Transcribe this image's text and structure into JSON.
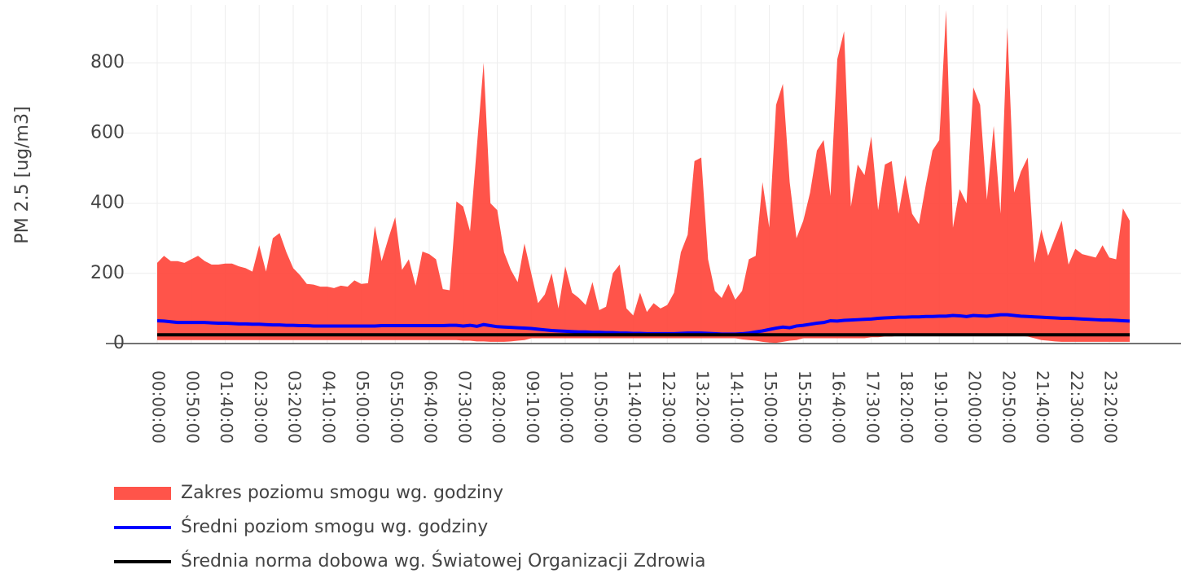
{
  "chart_data": {
    "type": "range-line",
    "ylabel": "PM 2.5 [ug/m3]",
    "x": [
      "00:00:00",
      "00:10:00",
      "00:20:00",
      "00:30:00",
      "00:40:00",
      "00:50:00",
      "01:00:00",
      "01:10:00",
      "01:20:00",
      "01:30:00",
      "01:40:00",
      "01:50:00",
      "02:00:00",
      "02:10:00",
      "02:20:00",
      "02:30:00",
      "02:40:00",
      "02:50:00",
      "03:00:00",
      "03:10:00",
      "03:20:00",
      "03:30:00",
      "03:40:00",
      "03:50:00",
      "04:00:00",
      "04:10:00",
      "04:20:00",
      "04:30:00",
      "04:40:00",
      "04:50:00",
      "05:00:00",
      "05:10:00",
      "05:20:00",
      "05:30:00",
      "05:40:00",
      "05:50:00",
      "06:00:00",
      "06:10:00",
      "06:20:00",
      "06:30:00",
      "06:40:00",
      "06:50:00",
      "07:00:00",
      "07:10:00",
      "07:20:00",
      "07:30:00",
      "07:40:00",
      "07:50:00",
      "08:00:00",
      "08:10:00",
      "08:20:00",
      "08:30:00",
      "08:40:00",
      "08:50:00",
      "09:00:00",
      "09:10:00",
      "09:20:00",
      "09:30:00",
      "09:40:00",
      "09:50:00",
      "10:00:00",
      "10:10:00",
      "10:20:00",
      "10:30:00",
      "10:40:00",
      "10:50:00",
      "11:00:00",
      "11:10:00",
      "11:20:00",
      "11:30:00",
      "11:40:00",
      "11:50:00",
      "12:00:00",
      "12:10:00",
      "12:20:00",
      "12:30:00",
      "12:40:00",
      "12:50:00",
      "13:00:00",
      "13:10:00",
      "13:20:00",
      "13:30:00",
      "13:40:00",
      "13:50:00",
      "14:00:00",
      "14:10:00",
      "14:20:00",
      "14:30:00",
      "14:40:00",
      "14:50:00",
      "15:00:00",
      "15:10:00",
      "15:20:00",
      "15:30:00",
      "15:40:00",
      "15:50:00",
      "16:00:00",
      "16:10:00",
      "16:20:00",
      "16:30:00",
      "16:40:00",
      "16:50:00",
      "17:00:00",
      "17:10:00",
      "17:20:00",
      "17:30:00",
      "17:40:00",
      "17:50:00",
      "18:00:00",
      "18:10:00",
      "18:20:00",
      "18:30:00",
      "18:40:00",
      "18:50:00",
      "19:00:00",
      "19:10:00",
      "19:20:00",
      "19:30:00",
      "19:40:00",
      "19:50:00",
      "20:00:00",
      "20:10:00",
      "20:20:00",
      "20:30:00",
      "20:40:00",
      "20:50:00",
      "21:00:00",
      "21:10:00",
      "21:20:00",
      "21:30:00",
      "21:40:00",
      "21:50:00",
      "22:00:00",
      "22:10:00",
      "22:20:00",
      "22:30:00",
      "22:40:00",
      "22:50:00",
      "23:00:00",
      "23:10:00",
      "23:20:00",
      "23:30:00",
      "23:40:00",
      "23:50:00"
    ],
    "xticks": [
      "00:00:00",
      "00:50:00",
      "01:40:00",
      "02:30:00",
      "03:20:00",
      "04:10:00",
      "05:00:00",
      "05:50:00",
      "06:40:00",
      "07:30:00",
      "08:20:00",
      "09:10:00",
      "10:00:00",
      "10:50:00",
      "11:40:00",
      "12:30:00",
      "13:20:00",
      "14:10:00",
      "15:00:00",
      "15:50:00",
      "16:40:00",
      "17:30:00",
      "18:20:00",
      "19:10:00",
      "20:00:00",
      "20:50:00",
      "21:40:00",
      "22:30:00",
      "23:20:00"
    ],
    "ylim": [
      0,
      965
    ],
    "yticks": [
      0,
      200,
      400,
      600,
      800
    ],
    "grid": true,
    "series": [
      {
        "name": "Zakres poziomu smogu wg. godziny",
        "color": "#ff4136",
        "type": "range",
        "upper": [
          230,
          250,
          235,
          235,
          230,
          240,
          250,
          235,
          225,
          225,
          228,
          228,
          220,
          215,
          205,
          280,
          205,
          300,
          315,
          260,
          215,
          195,
          170,
          168,
          162,
          162,
          158,
          165,
          162,
          180,
          170,
          172,
          335,
          235,
          300,
          360,
          210,
          240,
          165,
          262,
          255,
          240,
          155,
          152,
          405,
          390,
          320,
          560,
          800,
          400,
          380,
          260,
          210,
          175,
          285,
          200,
          115,
          140,
          200,
          100,
          220,
          145,
          130,
          110,
          175,
          95,
          105,
          200,
          225,
          100,
          80,
          145,
          90,
          115,
          100,
          110,
          145,
          260,
          310,
          520,
          530,
          240,
          150,
          130,
          170,
          125,
          150,
          240,
          250,
          460,
          330,
          680,
          740,
          460,
          300,
          350,
          430,
          550,
          580,
          420,
          810,
          890,
          390,
          510,
          480,
          590,
          380,
          510,
          520,
          370,
          480,
          370,
          340,
          450,
          550,
          580,
          950,
          330,
          440,
          400,
          730,
          680,
          410,
          620,
          370,
          900,
          430,
          490,
          530,
          230,
          325,
          250,
          300,
          350,
          225,
          270,
          255,
          250,
          245,
          280,
          245,
          240,
          385,
          350
        ],
        "lower": [
          10,
          10,
          10,
          10,
          10,
          10,
          10,
          10,
          10,
          10,
          10,
          10,
          10,
          10,
          10,
          10,
          10,
          10,
          10,
          10,
          10,
          10,
          10,
          10,
          10,
          10,
          10,
          10,
          10,
          10,
          10,
          10,
          10,
          10,
          10,
          10,
          10,
          10,
          10,
          10,
          10,
          10,
          10,
          10,
          10,
          8,
          8,
          6,
          6,
          5,
          5,
          5,
          6,
          8,
          10,
          15,
          15,
          15,
          15,
          15,
          15,
          15,
          15,
          15,
          15,
          15,
          15,
          15,
          15,
          15,
          15,
          15,
          15,
          15,
          15,
          15,
          15,
          15,
          15,
          15,
          15,
          15,
          15,
          15,
          15,
          15,
          12,
          10,
          8,
          5,
          3,
          2,
          5,
          8,
          10,
          15,
          15,
          15,
          15,
          15,
          15,
          15,
          15,
          15,
          15,
          18,
          18,
          20,
          20,
          22,
          22,
          24,
          25,
          25,
          26,
          28,
          28,
          28,
          26,
          24,
          24,
          24,
          24,
          25,
          26,
          26,
          24,
          22,
          20,
          15,
          10,
          8,
          6,
          5,
          5,
          5,
          5,
          5,
          5,
          5,
          5,
          5,
          5,
          5
        ]
      },
      {
        "name": "Średni poziom smogu wg. godziny",
        "color": "#0000ff",
        "type": "line",
        "values": [
          65,
          64,
          62,
          60,
          60,
          60,
          60,
          60,
          59,
          58,
          58,
          57,
          56,
          56,
          55,
          55,
          54,
          53,
          53,
          52,
          52,
          51,
          51,
          50,
          50,
          50,
          50,
          50,
          50,
          50,
          50,
          50,
          50,
          51,
          51,
          51,
          51,
          51,
          51,
          51,
          51,
          51,
          51,
          52,
          52,
          50,
          52,
          49,
          54,
          51,
          48,
          47,
          46,
          45,
          44,
          43,
          41,
          39,
          37,
          36,
          35,
          34,
          33,
          33,
          32,
          32,
          31,
          31,
          30,
          30,
          29,
          29,
          28,
          28,
          28,
          28,
          28,
          29,
          30,
          30,
          30,
          29,
          28,
          27,
          27,
          27,
          28,
          30,
          33,
          36,
          40,
          44,
          47,
          45,
          50,
          52,
          55,
          58,
          60,
          65,
          64,
          66,
          67,
          68,
          69,
          70,
          72,
          73,
          74,
          75,
          75,
          76,
          76,
          77,
          77,
          78,
          78,
          80,
          79,
          77,
          80,
          79,
          78,
          80,
          82,
          82,
          80,
          78,
          77,
          76,
          75,
          74,
          73,
          72,
          72,
          71,
          70,
          69,
          68,
          67,
          67,
          66,
          65,
          64
        ]
      },
      {
        "name": "Średnia norma dobowa wg. Światowej Organizacji Zdrowia",
        "color": "#000000",
        "type": "hline",
        "value": 25
      }
    ]
  }
}
